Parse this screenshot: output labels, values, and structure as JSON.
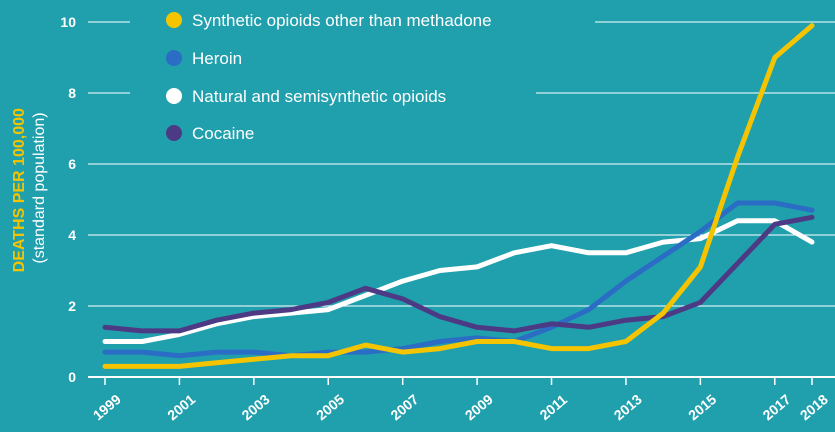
{
  "colors": {
    "background": "#20a0ad",
    "grid": "#ffffff",
    "text": "#ffffff",
    "ylabel_accent": "#f5c400"
  },
  "chart_data": {
    "type": "line",
    "title": "",
    "ylabel": "DEATHS PER 100,000",
    "ylabel_sub": "(standard population)",
    "xlabel": "",
    "ylim": [
      0,
      10
    ],
    "y_ticks": [
      0,
      2,
      4,
      6,
      8,
      10
    ],
    "x_ticks": [
      "1999",
      "2001",
      "2003",
      "2005",
      "2007",
      "2009",
      "2011",
      "2013",
      "2015",
      "2017",
      "2018"
    ],
    "x": [
      1999,
      2000,
      2001,
      2002,
      2003,
      2004,
      2005,
      2006,
      2007,
      2008,
      2009,
      2010,
      2011,
      2012,
      2013,
      2014,
      2015,
      2016,
      2017,
      2018
    ],
    "grid": "horizontal",
    "legend_position": "top",
    "series": [
      {
        "name": "Synthetic opioids other than methadone",
        "color": "#f5c400",
        "values": [
          0.3,
          0.3,
          0.3,
          0.4,
          0.5,
          0.6,
          0.6,
          0.9,
          0.7,
          0.8,
          1.0,
          1.0,
          0.8,
          0.8,
          1.0,
          1.8,
          3.1,
          6.2,
          9.0,
          9.9
        ]
      },
      {
        "name": "Heroin",
        "color": "#2b6cc4",
        "values": [
          0.7,
          0.7,
          0.6,
          0.7,
          0.7,
          0.6,
          0.7,
          0.7,
          0.8,
          1.0,
          1.1,
          1.0,
          1.4,
          1.9,
          2.7,
          3.4,
          4.1,
          4.9,
          4.9,
          4.7
        ]
      },
      {
        "name": "Natural and semisynthetic opioids",
        "color": "#ffffff",
        "values": [
          1.0,
          1.0,
          1.2,
          1.5,
          1.7,
          1.8,
          1.9,
          2.3,
          2.7,
          3.0,
          3.1,
          3.5,
          3.7,
          3.5,
          3.5,
          3.8,
          3.9,
          4.4,
          4.4,
          3.8
        ]
      },
      {
        "name": "Cocaine",
        "color": "#4d3a84",
        "values": [
          1.4,
          1.3,
          1.3,
          1.6,
          1.8,
          1.9,
          2.1,
          2.5,
          2.2,
          1.7,
          1.4,
          1.3,
          1.5,
          1.4,
          1.6,
          1.7,
          2.1,
          3.2,
          4.3,
          4.5
        ]
      }
    ]
  }
}
